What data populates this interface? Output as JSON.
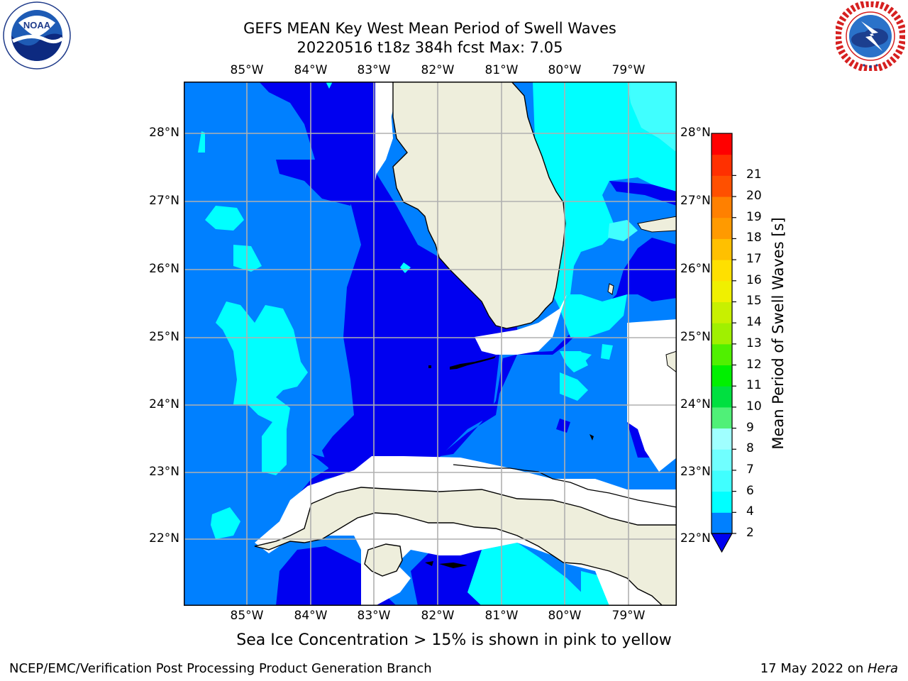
{
  "title": {
    "line1": "GEFS MEAN Key West Mean Period of Swell Waves",
    "line2": "20220516 t18z 384h fcst   Max: 7.05"
  },
  "logos": {
    "left": {
      "icon": "noaa-logo",
      "text": "NOAA",
      "ring_text": "NATIONAL OCEANIC AND ATMOSPHERIC ADMINISTRATION · U.S. DEPARTMENT OF COMMERCE"
    },
    "right": {
      "icon": "nws-logo",
      "ring_text": "NATIONAL WEATHER SERVICE"
    }
  },
  "map": {
    "lon_labels": [
      "85°W",
      "84°W",
      "83°W",
      "82°W",
      "81°W",
      "80°W",
      "79°W"
    ],
    "lat_labels": [
      "28°N",
      "27°N",
      "26°N",
      "25°N",
      "24°N",
      "23°N",
      "22°N"
    ],
    "gridlines": true,
    "colors": {
      "land": "#eeeedc",
      "band_2_4": "#0080ff",
      "band_below_2": "#0000f0",
      "band_4_6": "#00ffff",
      "band_6_8": "#40ffff",
      "missing": "#ffffff"
    }
  },
  "colorbar": {
    "label": "Mean Period of Swell Waves [s]",
    "ticks": [
      "2",
      "4",
      "6",
      "7",
      "8",
      "9",
      "10",
      "11",
      "12",
      "13",
      "14",
      "15",
      "16",
      "17",
      "18",
      "19",
      "20",
      "21"
    ],
    "colors": [
      "#0080ff",
      "#00ffff",
      "#40ffff",
      "#70ffff",
      "#a0ffff",
      "#50f078",
      "#00e040",
      "#00f000",
      "#50f000",
      "#a0f000",
      "#c8f000",
      "#f0f000",
      "#ffe000",
      "#ffc000",
      "#ff9a00",
      "#ff8000",
      "#ff5000",
      "#ff3000",
      "#ff0000"
    ],
    "under_color": "#0000f0"
  },
  "caption": "Sea Ice Concentration > 15% is shown in pink to yellow",
  "footer": {
    "left": "NCEP/EMC/Verification Post Processing Product Generation Branch",
    "right_prefix": "17 May 2022 on ",
    "right_host": "Hera"
  }
}
